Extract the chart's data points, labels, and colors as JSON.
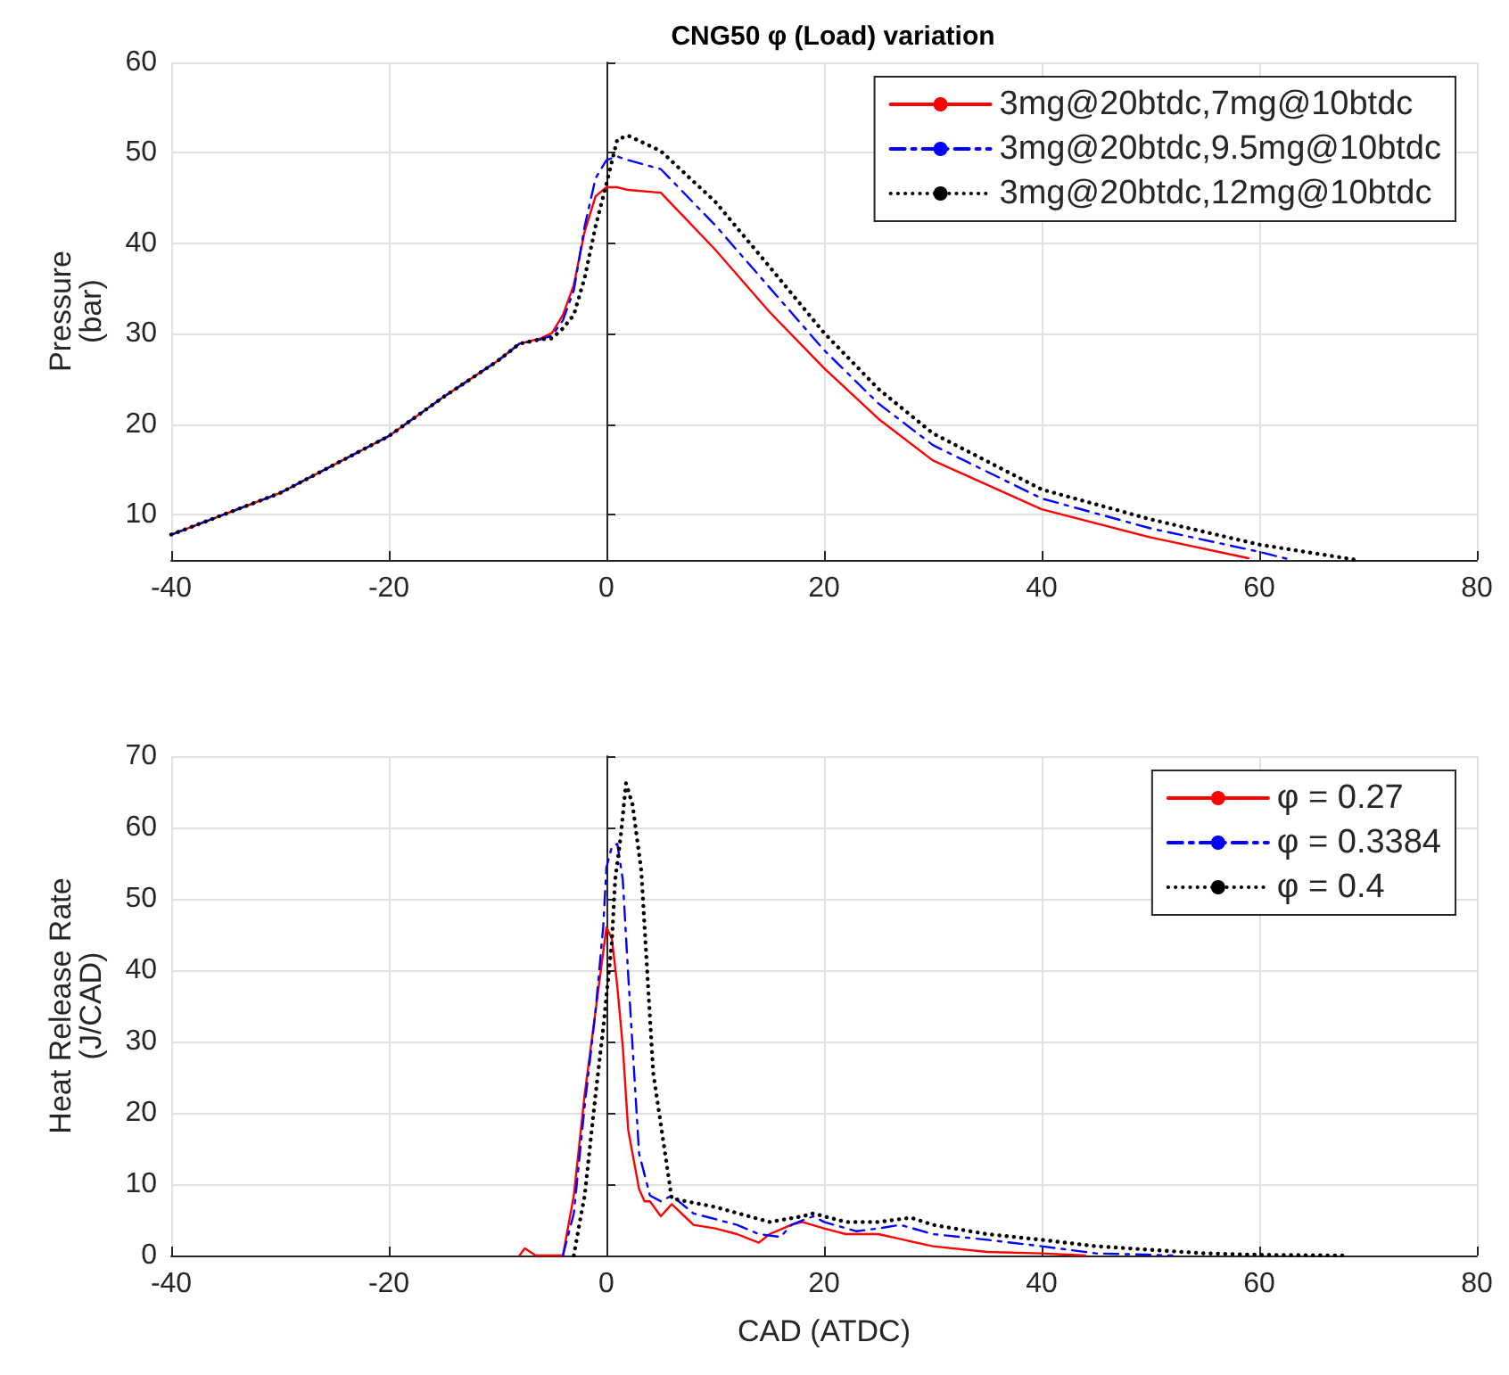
{
  "chart_data": [
    {
      "type": "line",
      "title": "CNG50 φ (Load) variation",
      "ylabel": "Pressure\n(bar)",
      "xlim": [
        -40,
        80
      ],
      "xticks": [
        -40,
        -20,
        0,
        20,
        40,
        60,
        80
      ],
      "ylim": [
        5,
        60
      ],
      "yticks": [
        10,
        20,
        30,
        40,
        50,
        60
      ],
      "grid": true,
      "legend": "top right",
      "marker": "none",
      "series": [
        {
          "name": "3mg@20btdc,7mg@10btdc",
          "color": "#ff0000",
          "line_style": "solid",
          "x": [
            -40,
            -30,
            -20,
            -15,
            -10,
            -8,
            -6,
            -5,
            -4,
            -3,
            -2,
            -1,
            0,
            1,
            2,
            5,
            10,
            15,
            20,
            25,
            30,
            40,
            50,
            59
          ],
          "values": [
            7.8,
            12.4,
            18.7,
            23.0,
            27.0,
            28.9,
            29.5,
            30.1,
            32.1,
            35.4,
            41.3,
            45.2,
            46.2,
            46.2,
            45.9,
            45.6,
            39.3,
            32.4,
            26.2,
            20.6,
            16.0,
            10.6,
            7.5,
            5.2
          ]
        },
        {
          "name": "3mg@20btdc,9.5mg@10btdc",
          "color": "#0000ff",
          "line_style": "dashed",
          "x": [
            -40,
            -30,
            -20,
            -15,
            -10,
            -8,
            -6,
            -5,
            -4,
            -3,
            -2,
            -1,
            0,
            1,
            2,
            5,
            10,
            15,
            20,
            25,
            30,
            40,
            50,
            60,
            63
          ],
          "values": [
            7.8,
            12.4,
            18.7,
            23.0,
            27.0,
            28.9,
            29.4,
            29.8,
            31.5,
            34.8,
            41.9,
            47.2,
            49.2,
            49.6,
            49.2,
            48.2,
            42.0,
            35.1,
            28.2,
            22.3,
            17.7,
            11.8,
            8.5,
            5.9,
            5.0
          ]
        },
        {
          "name": "3mg@20btdc,12mg@10btdc",
          "color": "#000000",
          "line_style": "dotted",
          "x": [
            -40,
            -30,
            -20,
            -15,
            -10,
            -8,
            -6,
            -5,
            -4,
            -3,
            -2,
            -1,
            0,
            1,
            2,
            5,
            10,
            15,
            20,
            25,
            30,
            40,
            50,
            60,
            69
          ],
          "values": [
            7.8,
            12.4,
            18.7,
            23.0,
            27.0,
            28.9,
            29.4,
            29.5,
            30.6,
            32.1,
            36.2,
            41.9,
            46.6,
            51.5,
            51.9,
            50.2,
            44.6,
            37.4,
            30.1,
            23.9,
            19.0,
            12.8,
            9.5,
            6.7,
            5.0
          ]
        }
      ]
    },
    {
      "type": "line",
      "xlabel": "CAD (ATDC)",
      "ylabel": "Heat Release Rate\n(J/CAD)",
      "xlim": [
        -40,
        80
      ],
      "xticks": [
        -40,
        -20,
        0,
        20,
        40,
        60,
        80
      ],
      "ylim": [
        0,
        70
      ],
      "yticks": [
        0,
        10,
        20,
        30,
        40,
        50,
        60,
        70
      ],
      "grid": true,
      "legend": "top right",
      "marker": "none",
      "series": [
        {
          "name": "φ = 0.27",
          "color": "#ff0000",
          "line_style": "solid",
          "x": [
            -8,
            -7.5,
            -6.5,
            -4,
            -3,
            -2,
            -1,
            0,
            0.5,
            1,
            1.5,
            2,
            3,
            3.5,
            4,
            5,
            6,
            8,
            10,
            12,
            14,
            15,
            17,
            18,
            20,
            22,
            25,
            30,
            35,
            40,
            44
          ],
          "values": [
            0,
            1,
            0,
            0,
            8.4,
            22.6,
            34.3,
            46,
            44.4,
            37.7,
            29.3,
            17.6,
            9.3,
            7.6,
            7.6,
            5.5,
            7.2,
            4.3,
            3.8,
            3.0,
            1.8,
            3.0,
            4.3,
            4.7,
            3.8,
            3.0,
            3.0,
            1.3,
            0.5,
            0.3,
            0
          ]
        },
        {
          "name": "φ = 0.3384",
          "color": "#0000ff",
          "line_style": "dashed",
          "x": [
            -4,
            -3,
            -2,
            -1,
            -0.3,
            0,
            0.5,
            1,
            1.5,
            2,
            2.5,
            3,
            4,
            5,
            6,
            8,
            10,
            12,
            14,
            16,
            17,
            19,
            20,
            23,
            25,
            27,
            30,
            35,
            40,
            45,
            50,
            52
          ],
          "values": [
            0,
            5.9,
            21,
            34.3,
            46,
            54.4,
            57.3,
            57.7,
            52.7,
            39.3,
            26.8,
            14.3,
            8.4,
            7.6,
            8.4,
            5.9,
            5.1,
            4.3,
            3.0,
            2.6,
            4.3,
            5.5,
            4.7,
            3.4,
            3.8,
            4.3,
            3.0,
            2.2,
            1.3,
            0.3,
            0.1,
            0
          ]
        },
        {
          "name": "φ = 0.4",
          "color": "#000000",
          "line_style": "dotted",
          "x": [
            -3,
            -2.5,
            -2,
            -1,
            -0.3,
            0.5,
            0.8,
            1.3,
            1.8,
            2.4,
            3.2,
            3.7,
            4.3,
            6,
            10,
            15,
            18,
            19,
            22,
            25,
            28,
            30,
            35,
            40,
            45,
            50,
            55,
            60,
            68
          ],
          "values": [
            0,
            4.3,
            8.4,
            22.6,
            31.8,
            44,
            52.7,
            58.6,
            66.2,
            63.2,
            54,
            41,
            25.6,
            8,
            6.8,
            4.7,
            5.5,
            5.9,
            4.7,
            4.7,
            5.3,
            4.3,
            3.0,
            2.2,
            1.3,
            0.8,
            0.3,
            0.1,
            0
          ]
        }
      ]
    }
  ]
}
